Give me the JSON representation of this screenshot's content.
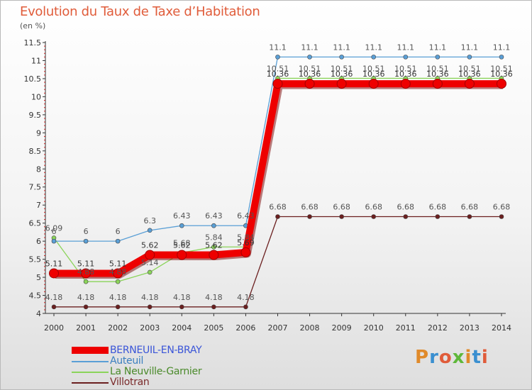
{
  "header": {
    "title": "Evolution du Taux de Taxe d’Habitation",
    "unit": "(en %)"
  },
  "brand": {
    "text": "Proxiti",
    "colors": [
      "#e08a2a",
      "#3a8fd0",
      "#e05c3a",
      "#5fb83a",
      "#e08a2a",
      "#3a8fd0",
      "#e05c3a"
    ]
  },
  "chart_data": {
    "type": "line",
    "title": "Evolution du Taux de Taxe d’Habitation",
    "ylabel": "(en %)",
    "xlabel": "",
    "ylim": [
      4,
      11.5
    ],
    "yticks": [
      "4",
      "4.5",
      "5",
      "5.5",
      "6",
      "6.5",
      "7",
      "7.5",
      "8",
      "8.5",
      "9",
      "9.5",
      "10",
      "10.5",
      "11",
      "11.5"
    ],
    "x": [
      "2000",
      "2001",
      "2002",
      "2003",
      "2004",
      "2005",
      "2006",
      "2007",
      "2008",
      "2009",
      "2010",
      "2011",
      "2012",
      "2013",
      "2014"
    ],
    "legend_position": "bottom-left",
    "series": [
      {
        "name": "Villotran",
        "color": "#6b1f1f",
        "values": [
          4.18,
          4.18,
          4.18,
          4.18,
          4.18,
          4.18,
          4.18,
          6.68,
          6.68,
          6.68,
          6.68,
          6.68,
          6.68,
          6.68,
          6.68
        ],
        "labels": [
          "4.18",
          "4.18",
          "4.18",
          "4.18",
          "4.18",
          "4.18",
          "4.18",
          "6.68",
          "6.68",
          "6.68",
          "6.68",
          "6.68",
          "6.68",
          "6.68",
          "6.68"
        ]
      },
      {
        "name": "La Neuville-Garnier",
        "color": "#8bd45a",
        "values": [
          6.09,
          4.88,
          4.88,
          5.14,
          5.68,
          5.84,
          5.84,
          10.51,
          10.51,
          10.51,
          10.51,
          10.51,
          10.51,
          10.51,
          10.51
        ],
        "labels": [
          "6.09",
          "4.88",
          "4.88",
          "5.14",
          "5.68",
          "5.84",
          "5.84",
          "10.51",
          "10.51",
          "10.51",
          "10.51",
          "10.51",
          "10.51",
          "10.51",
          "10.51"
        ]
      },
      {
        "name": "Auteuil",
        "color": "#5a9fd6",
        "values": [
          6,
          6,
          6,
          6.3,
          6.43,
          6.43,
          6.43,
          11.1,
          11.1,
          11.1,
          11.1,
          11.1,
          11.1,
          11.1,
          11.1
        ],
        "labels": [
          "6",
          "6",
          "6",
          "6.3",
          "6.43",
          "6.43",
          "6.43",
          "11.1",
          "11.1",
          "11.1",
          "11.1",
          "11.1",
          "11.1",
          "11.1",
          "11.1"
        ]
      },
      {
        "name": "BERNEUIL-EN-BRAY",
        "color": "#ee0000",
        "values": [
          5.11,
          5.11,
          5.11,
          5.62,
          5.62,
          5.62,
          5.69,
          10.36,
          10.36,
          10.36,
          10.36,
          10.36,
          10.36,
          10.36,
          10.36
        ],
        "labels": [
          "5.11",
          "5.11",
          "5.11",
          "5.62",
          "5.62",
          "5.62",
          "5.69",
          "10.36",
          "10.36",
          "10.36",
          "10.36",
          "10.36",
          "10.36",
          "10.36",
          "10.36"
        ]
      }
    ]
  }
}
